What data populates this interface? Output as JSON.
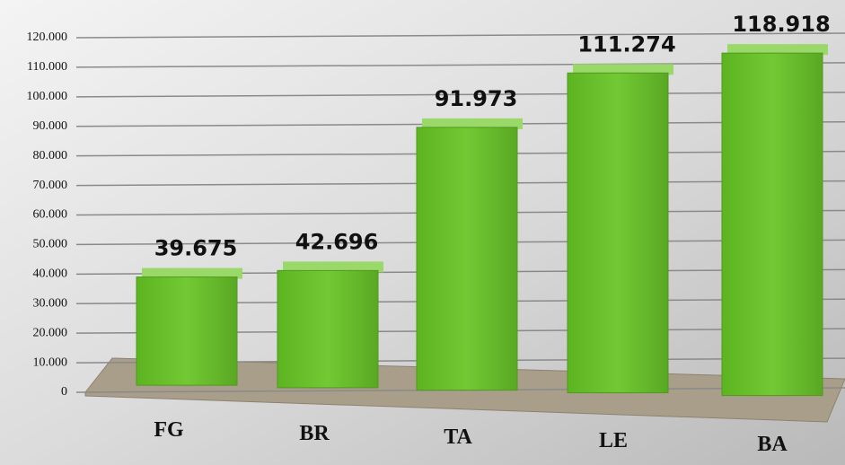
{
  "chart_data": {
    "type": "bar",
    "categories": [
      "FG",
      "BR",
      "TA",
      "LE",
      "BA"
    ],
    "values": [
      39675,
      42696,
      91973,
      111274,
      118918
    ],
    "value_labels": [
      "39.675",
      "42.696",
      "91.973",
      "111.274",
      "118.918"
    ],
    "color": "#6cc530",
    "ylim": [
      0,
      120000
    ],
    "yticks": [
      0,
      {
        "value": 10000,
        "label": "10.000"
      },
      {
        "value": 20000,
        "label": "20.000"
      },
      {
        "value": 30000,
        "label": "30.000"
      },
      {
        "value": 40000,
        "label": "40.000"
      },
      {
        "value": 50000,
        "label": "50.000"
      },
      {
        "value": 60000,
        "label": "60.000"
      },
      {
        "value": 70000,
        "label": "70.000"
      },
      {
        "value": 80000,
        "label": "80.000"
      },
      {
        "value": 90000,
        "label": "90.000"
      },
      {
        "value": 100000,
        "label": "100.000"
      },
      {
        "value": 110000,
        "label": "110.000"
      },
      {
        "value": 120000,
        "label": "120.000"
      }
    ],
    "grid": true
  }
}
